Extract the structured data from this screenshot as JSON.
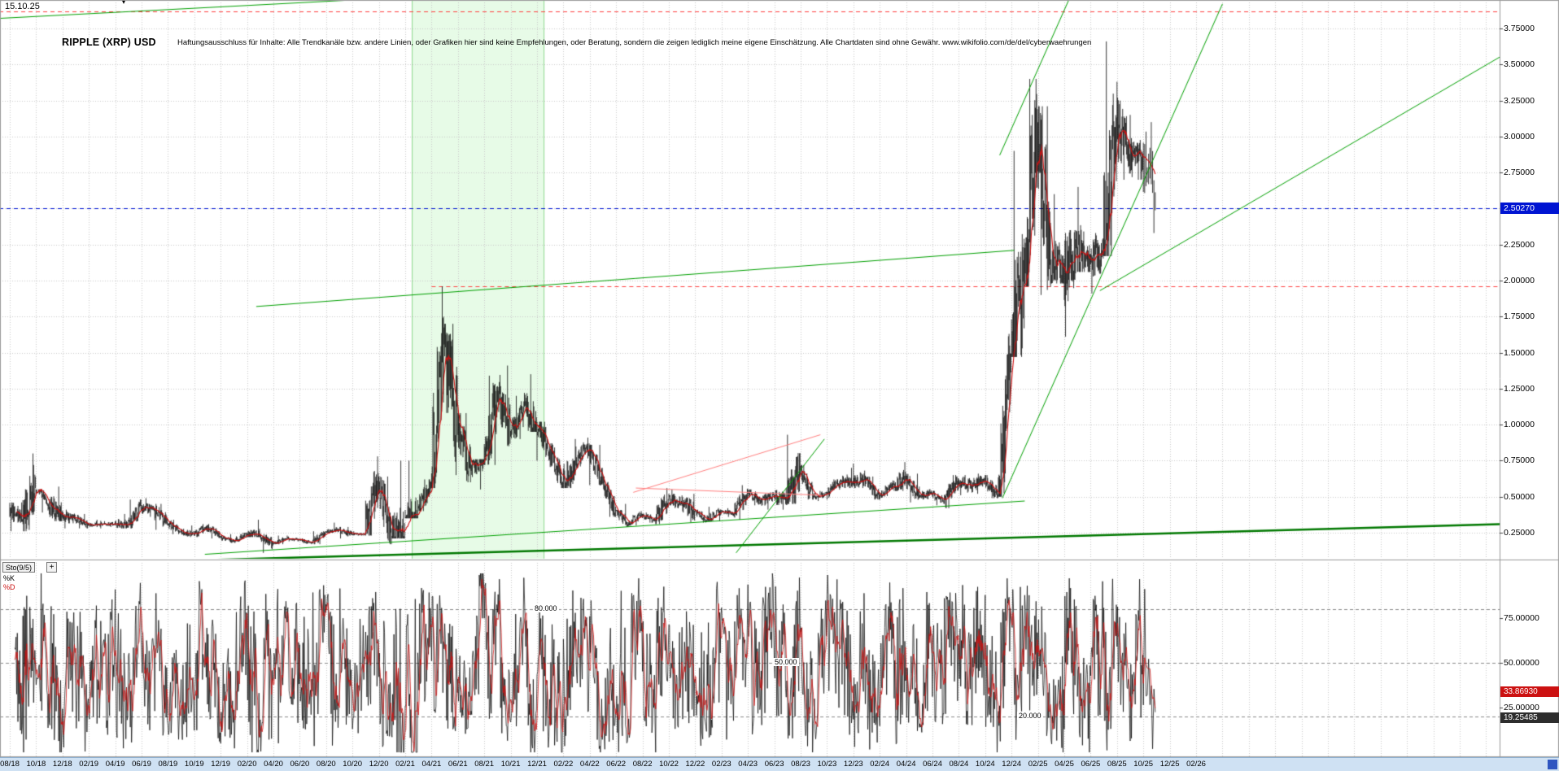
{
  "header": {
    "date_label": "15.10.25",
    "title": "RIPPLE (XRP) USD",
    "disclaimer": "Haftungsausschluss für Inhalte: Alle Trendkanäle bzw. andere Linien, oder Grafiken hier sind keine Empfehlungen, oder Beratung, sondern die zeigen lediglich meine eigene Einschätzung. Alle Chartdaten sind ohne Gewähr.  www.wikifolio.com/de/del/cyberwaehrungen"
  },
  "price_axis": {
    "ticks": [
      {
        "label": "3.75000",
        "value": 3.75
      },
      {
        "label": "3.50000",
        "value": 3.5
      },
      {
        "label": "3.25000",
        "value": 3.25
      },
      {
        "label": "3.00000",
        "value": 3.0
      },
      {
        "label": "2.75000",
        "value": 2.75
      },
      {
        "label": "2.25000",
        "value": 2.25
      },
      {
        "label": "2.00000",
        "value": 2.0
      },
      {
        "label": "1.75000",
        "value": 1.75
      },
      {
        "label": "1.50000",
        "value": 1.5
      },
      {
        "label": "1.25000",
        "value": 1.25
      },
      {
        "label": "1.00000",
        "value": 1.0
      },
      {
        "label": "0.75000",
        "value": 0.75
      },
      {
        "label": "0.50000",
        "value": 0.5
      },
      {
        "label": "0.25000",
        "value": 0.25
      }
    ],
    "last_price_tag": {
      "label": "2.50270",
      "value": 2.5027,
      "bg": "#0014d2"
    }
  },
  "x_axis": {
    "ticks": [
      {
        "label": "08/18",
        "m": 0
      },
      {
        "label": "10/18",
        "m": 2
      },
      {
        "label": "12/18",
        "m": 4
      },
      {
        "label": "02/19",
        "m": 6
      },
      {
        "label": "04/19",
        "m": 8
      },
      {
        "label": "06/19",
        "m": 10
      },
      {
        "label": "08/19",
        "m": 12
      },
      {
        "label": "10/19",
        "m": 14
      },
      {
        "label": "12/19",
        "m": 16
      },
      {
        "label": "02/20",
        "m": 18
      },
      {
        "label": "04/20",
        "m": 20
      },
      {
        "label": "06/20",
        "m": 22
      },
      {
        "label": "08/20",
        "m": 24
      },
      {
        "label": "10/20",
        "m": 26
      },
      {
        "label": "12/20",
        "m": 28
      },
      {
        "label": "02/21",
        "m": 30
      },
      {
        "label": "04/21",
        "m": 32
      },
      {
        "label": "06/21",
        "m": 34
      },
      {
        "label": "08/21",
        "m": 36
      },
      {
        "label": "10/21",
        "m": 38
      },
      {
        "label": "12/21",
        "m": 40
      },
      {
        "label": "02/22",
        "m": 42
      },
      {
        "label": "04/22",
        "m": 44
      },
      {
        "label": "06/22",
        "m": 46
      },
      {
        "label": "08/22",
        "m": 48
      },
      {
        "label": "10/22",
        "m": 50
      },
      {
        "label": "12/22",
        "m": 52
      },
      {
        "label": "02/23",
        "m": 54
      },
      {
        "label": "04/23",
        "m": 56
      },
      {
        "label": "06/23",
        "m": 58
      },
      {
        "label": "08/23",
        "m": 60
      },
      {
        "label": "10/23",
        "m": 62
      },
      {
        "label": "12/23",
        "m": 64
      },
      {
        "label": "02/24",
        "m": 66
      },
      {
        "label": "04/24",
        "m": 68
      },
      {
        "label": "06/24",
        "m": 70
      },
      {
        "label": "08/24",
        "m": 72
      },
      {
        "label": "10/24",
        "m": 74
      },
      {
        "label": "12/24",
        "m": 76
      },
      {
        "label": "02/25",
        "m": 78
      },
      {
        "label": "04/25",
        "m": 80
      },
      {
        "label": "06/25",
        "m": 82
      },
      {
        "label": "08/25",
        "m": 84
      },
      {
        "label": "10/25",
        "m": 86
      },
      {
        "label": "12/25",
        "m": 88
      },
      {
        "label": "02/26",
        "m": 90
      }
    ]
  },
  "indicator_panel": {
    "name": "Sto(9/5)",
    "plus_label": "+",
    "legend": [
      {
        "label": "%K",
        "color": "#000000"
      },
      {
        "label": "%D",
        "color": "#cc1111"
      }
    ],
    "gridline_labels": [
      {
        "label": "80.000",
        "value": 80
      },
      {
        "label": "50.000",
        "value": 50
      },
      {
        "label": "20.000",
        "value": 20
      }
    ],
    "axis_labels": [
      {
        "label": "75.00000",
        "value": 75
      },
      {
        "label": "50.00000",
        "value": 50
      },
      {
        "label": "25.00000",
        "value": 25
      }
    ],
    "value_tags": [
      {
        "label": "33.86930",
        "value": 33.8693,
        "series": "%D",
        "bg": "#cc1111"
      },
      {
        "label": "19.25485",
        "value": 19.25485,
        "series": "%K",
        "bg": "#2d2d2d"
      }
    ]
  },
  "chart_data": {
    "type": "candlestick",
    "title": "RIPPLE (XRP) USD",
    "x_axis": "time, monthly anchors from 2018-08 to 2025-10 (daily candles)",
    "y_axis": "price in USD",
    "ylim": [
      0.07,
      3.95
    ],
    "price_grid_step": 0.25,
    "last_price": 2.5027,
    "last_date": "15.10.25",
    "monthly_ohlc": {
      "start_month": "2018-08",
      "open_first": 0.43,
      "high": [
        0.46,
        0.8,
        0.55,
        0.57,
        0.41,
        0.38,
        0.34,
        0.33,
        0.38,
        0.48,
        0.49,
        0.45,
        0.34,
        0.3,
        0.31,
        0.31,
        0.24,
        0.25,
        0.34,
        0.24,
        0.23,
        0.23,
        0.21,
        0.26,
        0.32,
        0.29,
        0.26,
        0.78,
        0.64,
        0.75,
        0.75,
        0.62,
        1.96,
        1.7,
        1.08,
        0.76,
        1.34,
        1.41,
        1.2,
        1.35,
        1.02,
        0.87,
        0.9,
        0.91,
        0.86,
        0.64,
        0.45,
        0.4,
        0.39,
        0.56,
        0.55,
        0.52,
        0.41,
        0.43,
        0.42,
        0.58,
        0.55,
        0.53,
        0.56,
        0.93,
        0.72,
        0.54,
        0.62,
        0.7,
        0.73,
        0.64,
        0.6,
        0.74,
        0.66,
        0.57,
        0.54,
        0.65,
        0.65,
        0.66,
        0.65,
        1.63,
        2.9,
        3.4,
        3.21,
        2.6,
        2.35,
        2.65,
        2.33,
        3.66,
        3.38,
        3.15,
        3.1
      ],
      "low": [
        0.26,
        0.26,
        0.39,
        0.33,
        0.28,
        0.28,
        0.28,
        0.29,
        0.28,
        0.28,
        0.36,
        0.27,
        0.24,
        0.22,
        0.22,
        0.21,
        0.18,
        0.18,
        0.22,
        0.11,
        0.17,
        0.19,
        0.17,
        0.17,
        0.25,
        0.21,
        0.23,
        0.23,
        0.17,
        0.21,
        0.35,
        0.4,
        0.56,
        0.65,
        0.6,
        0.55,
        0.72,
        0.85,
        0.9,
        0.95,
        0.75,
        0.56,
        0.56,
        0.7,
        0.58,
        0.36,
        0.29,
        0.3,
        0.32,
        0.31,
        0.42,
        0.32,
        0.32,
        0.33,
        0.36,
        0.34,
        0.44,
        0.41,
        0.41,
        0.45,
        0.48,
        0.47,
        0.48,
        0.56,
        0.56,
        0.48,
        0.48,
        0.54,
        0.46,
        0.48,
        0.44,
        0.42,
        0.51,
        0.52,
        0.49,
        0.5,
        1.47,
        1.96,
        1.9,
        1.98,
        1.61,
        2.06,
        1.91,
        2.17,
        2.7,
        2.7,
        2.33
      ],
      "close": [
        0.34,
        0.58,
        0.45,
        0.36,
        0.35,
        0.31,
        0.31,
        0.31,
        0.3,
        0.43,
        0.41,
        0.31,
        0.26,
        0.24,
        0.29,
        0.22,
        0.19,
        0.24,
        0.23,
        0.17,
        0.21,
        0.2,
        0.18,
        0.25,
        0.27,
        0.24,
        0.24,
        0.62,
        0.22,
        0.27,
        0.43,
        0.57,
        1.56,
        1.0,
        0.7,
        0.75,
        1.19,
        0.95,
        1.09,
        1.0,
        0.83,
        0.6,
        0.75,
        0.84,
        0.6,
        0.4,
        0.32,
        0.38,
        0.33,
        0.48,
        0.46,
        0.4,
        0.34,
        0.4,
        0.38,
        0.53,
        0.47,
        0.51,
        0.47,
        0.7,
        0.5,
        0.52,
        0.6,
        0.6,
        0.62,
        0.5,
        0.58,
        0.62,
        0.51,
        0.52,
        0.48,
        0.6,
        0.57,
        0.62,
        0.51,
        1.47,
        2.08,
        3.04,
        2.14,
        2.08,
        2.2,
        2.15,
        2.19,
        3.1,
        2.83,
        2.85,
        2.5027
      ]
    },
    "moving_average": {
      "color": "#cc1111",
      "window_days": 12
    },
    "band": {
      "from_month": 30.5,
      "to_month": 40.5,
      "fill": "#e7fbe7",
      "border": "#8fd88f"
    },
    "trend_lines": [
      {
        "name": "upper-screen-line",
        "color": "#00a000",
        "width": 1,
        "m1": -0.8,
        "p1": 3.82,
        "m2": 26.5,
        "p2": 3.95
      },
      {
        "name": "long-term-resistance",
        "color": "#00a000",
        "width": 1,
        "m1": 18.7,
        "p1": 1.82,
        "m2": 76.2,
        "p2": 2.21
      },
      {
        "name": "mid-term-support",
        "color": "#00a000",
        "width": 1,
        "m1": 14.8,
        "p1": 0.1,
        "m2": 77.0,
        "p2": 0.47
      },
      {
        "name": "major-support",
        "color": "#007800",
        "width": 2.5,
        "m1": 14.8,
        "p1": 0.06,
        "m2": 117,
        "p2": 0.32
      },
      {
        "name": "rally-channel-lower",
        "color": "#00a000",
        "width": 1,
        "m1": 75.3,
        "p1": 0.49,
        "m2": 92.0,
        "p2": 3.92
      },
      {
        "name": "rally-channel-upper",
        "color": "#00a000",
        "width": 1,
        "m1": 75.1,
        "p1": 2.87,
        "m2": 80.4,
        "p2": 3.96
      },
      {
        "name": "long-ascending-right",
        "color": "#00a000",
        "width": 1,
        "m1": 82.7,
        "p1": 1.93,
        "m2": 116,
        "p2": 3.71
      },
      {
        "name": "fan-line-2023",
        "color": "#00a000",
        "width": 1,
        "m1": 55.1,
        "p1": 0.11,
        "m2": 61.8,
        "p2": 0.9
      },
      {
        "name": "resistance-2023",
        "color": "#ff8080",
        "width": 1,
        "m1": 47.3,
        "p1": 0.53,
        "m2": 61.5,
        "p2": 0.93
      },
      {
        "name": "flat-resistance-2022",
        "color": "#ff8080",
        "width": 1,
        "m1": 47.5,
        "p1": 0.56,
        "m2": 61.6,
        "p2": 0.51
      }
    ],
    "horizontal_lines": [
      {
        "name": "upper-alert-line",
        "value": 3.868,
        "color": "#ff4040",
        "dash": true,
        "from_month": -0.8,
        "to_month": 113
      },
      {
        "name": "former-high-1.96",
        "value": 1.96,
        "color": "#ff4040",
        "dash": true,
        "from_month": 32,
        "to_month": 113
      },
      {
        "name": "last-price-line",
        "value": 2.5027,
        "color": "#0014d2",
        "dash": true,
        "from_month": -0.8,
        "to_month": 113
      }
    ],
    "indicator": {
      "name": "Sto(9/5)",
      "type": "stochastic",
      "k_period": 9,
      "d_period": 5,
      "gridlines": [
        80,
        50,
        20
      ],
      "last_d": 33.8693,
      "last_k": 19.25485
    }
  }
}
